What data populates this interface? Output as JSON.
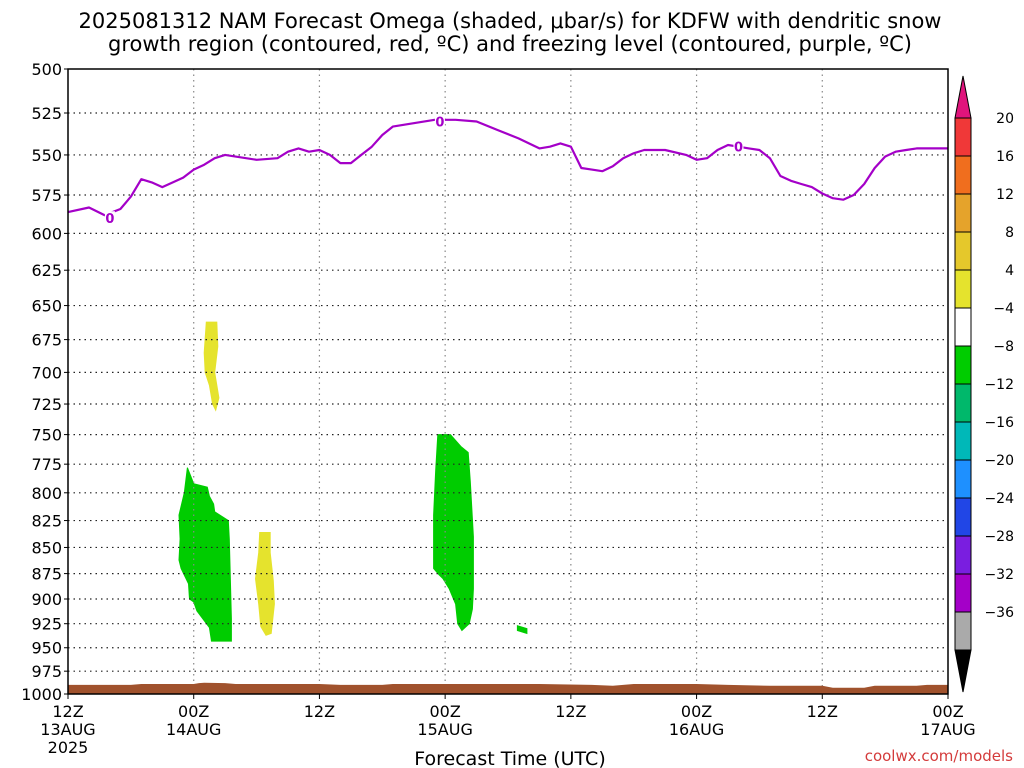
{
  "chart_data": {
    "type": "heatmap",
    "title_line1": "2025081312 NAM Forecast Omega (shaded, μbar/s) for KDFW with dendritic snow",
    "title_line2": "growth region (contoured, red, ºC) and freezing level (contoured, purple, ºC)",
    "xlabel": "Forecast Time (UTC)",
    "credit": "coolwx.com/models",
    "y_axis": {
      "scale": "log-pressure",
      "ylim": [
        1000,
        500
      ],
      "ticks": [
        500,
        525,
        550,
        575,
        600,
        625,
        650,
        675,
        700,
        725,
        750,
        775,
        800,
        825,
        850,
        875,
        900,
        925,
        950,
        975,
        1000
      ],
      "units": "mb"
    },
    "x_axis": {
      "range_hours": [
        0,
        84
      ],
      "start": "2025-08-13 12Z",
      "ticks": [
        {
          "hour": 0,
          "l1": "12Z",
          "l2": "13AUG",
          "l3": "2025"
        },
        {
          "hour": 12,
          "l1": "00Z",
          "l2": "14AUG",
          "l3": ""
        },
        {
          "hour": 24,
          "l1": "12Z",
          "l2": "",
          "l3": ""
        },
        {
          "hour": 36,
          "l1": "00Z",
          "l2": "15AUG",
          "l3": ""
        },
        {
          "hour": 48,
          "l1": "12Z",
          "l2": "",
          "l3": ""
        },
        {
          "hour": 60,
          "l1": "00Z",
          "l2": "16AUG",
          "l3": ""
        },
        {
          "hour": 72,
          "l1": "12Z",
          "l2": "",
          "l3": ""
        },
        {
          "hour": 84,
          "l1": "00Z",
          "l2": "17AUG",
          "l3": ""
        }
      ]
    },
    "grid": true,
    "freezing_level": {
      "label": "0",
      "color": "#a400c8",
      "label_points": [
        [
          4,
          590
        ],
        [
          35.5,
          530
        ],
        [
          64,
          545
        ]
      ],
      "points": [
        [
          0,
          586
        ],
        [
          2,
          583
        ],
        [
          3.5,
          588
        ],
        [
          5,
          584
        ],
        [
          6,
          576
        ],
        [
          7,
          565
        ],
        [
          8,
          567
        ],
        [
          9,
          570
        ],
        [
          10,
          567
        ],
        [
          11,
          564
        ],
        [
          12,
          559
        ],
        [
          13,
          556
        ],
        [
          14,
          552
        ],
        [
          15,
          550
        ],
        [
          16,
          551
        ],
        [
          18,
          553
        ],
        [
          20,
          552
        ],
        [
          21,
          548
        ],
        [
          22,
          546
        ],
        [
          23,
          548
        ],
        [
          24,
          547
        ],
        [
          25,
          550
        ],
        [
          26,
          555
        ],
        [
          27,
          555
        ],
        [
          28,
          550
        ],
        [
          29,
          545
        ],
        [
          30,
          538
        ],
        [
          31,
          533
        ],
        [
          33,
          531
        ],
        [
          35,
          529
        ],
        [
          37,
          529
        ],
        [
          39,
          530
        ],
        [
          41,
          535
        ],
        [
          43,
          540
        ],
        [
          45,
          546
        ],
        [
          46,
          545
        ],
        [
          47,
          543
        ],
        [
          48,
          545
        ],
        [
          49,
          558
        ],
        [
          50,
          559
        ],
        [
          51,
          560
        ],
        [
          52,
          557
        ],
        [
          53,
          552
        ],
        [
          54,
          549
        ],
        [
          55,
          547
        ],
        [
          57,
          547
        ],
        [
          59,
          550
        ],
        [
          60,
          553
        ],
        [
          61,
          552
        ],
        [
          62,
          547
        ],
        [
          63,
          544
        ],
        [
          64,
          545
        ],
        [
          65,
          546
        ],
        [
          66,
          547
        ],
        [
          67,
          552
        ],
        [
          68,
          563
        ],
        [
          69,
          566
        ],
        [
          70,
          568
        ],
        [
          71,
          570
        ],
        [
          72,
          574
        ],
        [
          73,
          577
        ],
        [
          74,
          578
        ],
        [
          75,
          575
        ],
        [
          76,
          568
        ],
        [
          77,
          558
        ],
        [
          78,
          551
        ],
        [
          79,
          548
        ],
        [
          80,
          547
        ],
        [
          81,
          546
        ],
        [
          84,
          546
        ]
      ]
    },
    "omega_regions": [
      {
        "category": "yellow_4_8",
        "color": "#e5e32d",
        "points": [
          [
            13.2,
            662
          ],
          [
            14.2,
            662
          ],
          [
            14.3,
            680
          ],
          [
            14.0,
            700
          ],
          [
            14.4,
            720
          ],
          [
            14.1,
            730
          ],
          [
            13.8,
            725
          ],
          [
            13.5,
            710
          ],
          [
            13.1,
            700
          ],
          [
            13.0,
            685
          ]
        ]
      },
      {
        "category": "green_-4_-8",
        "color": "#00cc00",
        "points": [
          [
            11.4,
            778
          ],
          [
            12.0,
            792
          ],
          [
            13.3,
            795
          ],
          [
            13.5,
            803
          ],
          [
            13.9,
            810
          ],
          [
            14.0,
            817
          ],
          [
            15.3,
            825
          ],
          [
            15.4,
            842
          ],
          [
            15.6,
            920
          ],
          [
            15.6,
            943
          ],
          [
            13.7,
            943
          ],
          [
            13.5,
            929
          ],
          [
            12.3,
            912
          ],
          [
            12.0,
            903
          ],
          [
            11.6,
            900
          ],
          [
            11.5,
            885
          ],
          [
            10.8,
            870
          ],
          [
            10.6,
            862
          ],
          [
            10.7,
            842
          ],
          [
            10.6,
            820
          ],
          [
            11.1,
            800
          ]
        ]
      },
      {
        "category": "yellow_4_8",
        "color": "#e5e32d",
        "points": [
          [
            18.3,
            836
          ],
          [
            19.3,
            836
          ],
          [
            19.3,
            855
          ],
          [
            19.6,
            882
          ],
          [
            19.7,
            905
          ],
          [
            19.4,
            935
          ],
          [
            18.9,
            937
          ],
          [
            18.4,
            928
          ],
          [
            18.2,
            905
          ],
          [
            17.9,
            880
          ],
          [
            18.2,
            855
          ]
        ]
      },
      {
        "category": "green_-4_-8",
        "color": "#00cc00",
        "points": [
          [
            35.3,
            750
          ],
          [
            36.5,
            750
          ],
          [
            37.5,
            760
          ],
          [
            38.2,
            765
          ],
          [
            38.4,
            790
          ],
          [
            38.7,
            840
          ],
          [
            38.7,
            890
          ],
          [
            38.6,
            910
          ],
          [
            38.3,
            925
          ],
          [
            37.6,
            932
          ],
          [
            37.2,
            925
          ],
          [
            37.0,
            905
          ],
          [
            36.4,
            890
          ],
          [
            35.8,
            880
          ],
          [
            35.4,
            876
          ],
          [
            34.9,
            870
          ],
          [
            34.9,
            820
          ],
          [
            35.1,
            780
          ]
        ]
      },
      {
        "category": "green_-4_-8",
        "color": "#00cc00",
        "points": [
          [
            42.9,
            927
          ],
          [
            43.8,
            930
          ],
          [
            43.8,
            935
          ],
          [
            42.9,
            932
          ]
        ]
      }
    ],
    "terrain": {
      "color": "#a0522d",
      "surface_points": [
        [
          0,
          990
        ],
        [
          6,
          990
        ],
        [
          7,
          989
        ],
        [
          12,
          989
        ],
        [
          12.5,
          988
        ],
        [
          13,
          987.5
        ],
        [
          15,
          988
        ],
        [
          16,
          989
        ],
        [
          24,
          989
        ],
        [
          26,
          990
        ],
        [
          30,
          990
        ],
        [
          31,
          989
        ],
        [
          45,
          989
        ],
        [
          50,
          990
        ],
        [
          52,
          991
        ],
        [
          54,
          989
        ],
        [
          60,
          989
        ],
        [
          63,
          990
        ],
        [
          67,
          991
        ],
        [
          72,
          991
        ],
        [
          73,
          993
        ],
        [
          76,
          993
        ],
        [
          77,
          991
        ],
        [
          81,
          991
        ],
        [
          82,
          990
        ],
        [
          84,
          990
        ]
      ]
    },
    "colorbar": {
      "units": "μbar/s",
      "labels": [
        "20",
        "16",
        "12",
        "8",
        "4",
        "−4",
        "−8",
        "−12",
        "−16",
        "−20",
        "−24",
        "−28",
        "−32",
        "−36"
      ],
      "top_arrow": "#e0147c",
      "bottom_arrow": "#000000",
      "bands": [
        "#f03838",
        "#f06e1e",
        "#e5a32b",
        "#e5c82b",
        "#e5e32d",
        "#ffffff",
        "#00cc00",
        "#00b86b",
        "#00b8b8",
        "#1e90ff",
        "#2146e6",
        "#7a1ee0",
        "#a400c8",
        "#aaaaaa"
      ]
    }
  }
}
